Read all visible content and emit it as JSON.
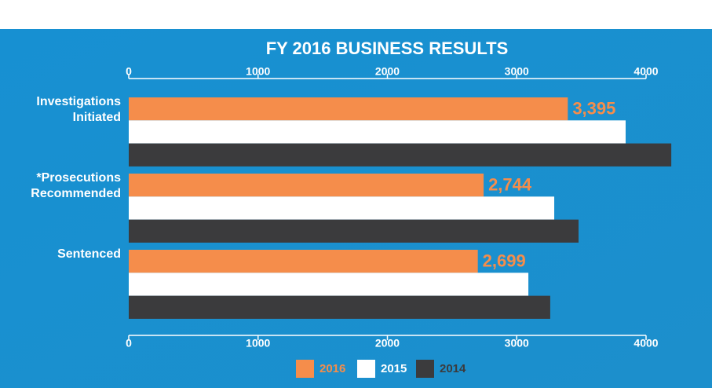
{
  "chart_data": {
    "type": "hbar",
    "title": "FY 2016 BUSINESS RESULTS",
    "categories": [
      "Investigations Initiated",
      "*Prosecutions Recommended",
      "Sentenced"
    ],
    "series": [
      {
        "name": "2016",
        "color": "#f58d4b",
        "values": [
          3395,
          2744,
          2699
        ],
        "value_labels": [
          "3,395",
          "2,744",
          "2,699"
        ]
      },
      {
        "name": "2015",
        "color": "#ffffff",
        "values": [
          3842,
          3290,
          3090
        ]
      },
      {
        "name": "2014",
        "color": "#3b3b3d",
        "values": [
          4195,
          3478,
          3259
        ]
      }
    ],
    "xlim": [
      0,
      4000
    ],
    "xticks": [
      0,
      1000,
      2000,
      3000,
      4000
    ],
    "legend": "bottom"
  }
}
